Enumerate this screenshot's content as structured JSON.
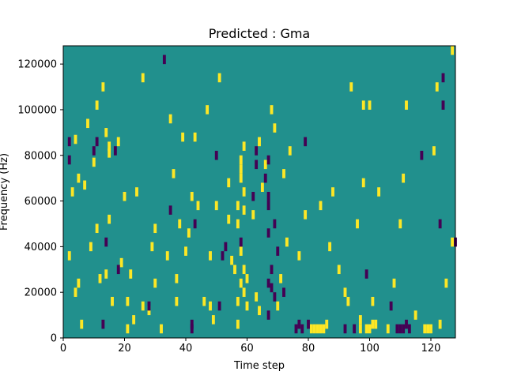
{
  "chart_data": {
    "type": "heatmap",
    "title": "Predicted : Gma",
    "xlabel": "Time step",
    "ylabel": "Frequency (Hz)",
    "xlim": [
      0,
      128
    ],
    "ylim": [
      0,
      128000
    ],
    "x_ticks": [
      0,
      20,
      40,
      60,
      80,
      100,
      120
    ],
    "y_ticks": [
      0,
      20000,
      40000,
      60000,
      80000,
      100000,
      120000
    ],
    "grid": false,
    "legend": "none",
    "colors": {
      "background": "#21908d",
      "high": "#fde725",
      "low": "#440154"
    },
    "cells_high": [
      {
        "x": 2,
        "y": 34000
      },
      {
        "x": 3,
        "y": 62000
      },
      {
        "x": 4,
        "y": 85000
      },
      {
        "x": 4,
        "y": 18000
      },
      {
        "x": 5,
        "y": 68000
      },
      {
        "x": 5,
        "y": 22000
      },
      {
        "x": 6,
        "y": 4000
      },
      {
        "x": 7,
        "y": 65000
      },
      {
        "x": 8,
        "y": 92000
      },
      {
        "x": 9,
        "y": 38000
      },
      {
        "x": 10,
        "y": 75000
      },
      {
        "x": 11,
        "y": 100000
      },
      {
        "x": 11,
        "y": 46000
      },
      {
        "x": 12,
        "y": 24000
      },
      {
        "x": 13,
        "y": 108000
      },
      {
        "x": 14,
        "y": 88000
      },
      {
        "x": 14,
        "y": 26000
      },
      {
        "x": 15,
        "y": 82000
      },
      {
        "x": 15,
        "y": 79000
      },
      {
        "x": 15,
        "y": 50000
      },
      {
        "x": 16,
        "y": 14000
      },
      {
        "x": 18,
        "y": 84000
      },
      {
        "x": 19,
        "y": 31000
      },
      {
        "x": 20,
        "y": 60000
      },
      {
        "x": 21,
        "y": 2000
      },
      {
        "x": 21,
        "y": 14000
      },
      {
        "x": 22,
        "y": 26000
      },
      {
        "x": 23,
        "y": 6000
      },
      {
        "x": 24,
        "y": 62000
      },
      {
        "x": 26,
        "y": 12000
      },
      {
        "x": 26,
        "y": 112000
      },
      {
        "x": 28,
        "y": 10000
      },
      {
        "x": 29,
        "y": 38000
      },
      {
        "x": 30,
        "y": 22000
      },
      {
        "x": 30,
        "y": 46000
      },
      {
        "x": 32,
        "y": 2000
      },
      {
        "x": 34,
        "y": 34000
      },
      {
        "x": 35,
        "y": 94000
      },
      {
        "x": 36,
        "y": 70000
      },
      {
        "x": 37,
        "y": 24000
      },
      {
        "x": 37,
        "y": 14000
      },
      {
        "x": 38,
        "y": 48000
      },
      {
        "x": 39,
        "y": 86000
      },
      {
        "x": 40,
        "y": 36000
      },
      {
        "x": 41,
        "y": 44000
      },
      {
        "x": 42,
        "y": 60000
      },
      {
        "x": 43,
        "y": 86000
      },
      {
        "x": 44,
        "y": 56000
      },
      {
        "x": 46,
        "y": 14000
      },
      {
        "x": 47,
        "y": 98000
      },
      {
        "x": 48,
        "y": 12000
      },
      {
        "x": 48,
        "y": 34000
      },
      {
        "x": 49,
        "y": 6000
      },
      {
        "x": 50,
        "y": 56000
      },
      {
        "x": 51,
        "y": 112000
      },
      {
        "x": 54,
        "y": 50000
      },
      {
        "x": 54,
        "y": 66000
      },
      {
        "x": 55,
        "y": 32000
      },
      {
        "x": 56,
        "y": 28000
      },
      {
        "x": 57,
        "y": 56000
      },
      {
        "x": 57,
        "y": 48000
      },
      {
        "x": 57,
        "y": 14000
      },
      {
        "x": 57,
        "y": 4000
      },
      {
        "x": 58,
        "y": 76000
      },
      {
        "x": 58,
        "y": 72000
      },
      {
        "x": 58,
        "y": 68000
      },
      {
        "x": 58,
        "y": 36000
      },
      {
        "x": 58,
        "y": 22000
      },
      {
        "x": 59,
        "y": 82000
      },
      {
        "x": 59,
        "y": 62000
      },
      {
        "x": 59,
        "y": 54000
      },
      {
        "x": 59,
        "y": 28000
      },
      {
        "x": 59,
        "y": 18000
      },
      {
        "x": 60,
        "y": 24000
      },
      {
        "x": 60,
        "y": 12000
      },
      {
        "x": 62,
        "y": 52000
      },
      {
        "x": 63,
        "y": 16000
      },
      {
        "x": 64,
        "y": 84000
      },
      {
        "x": 64,
        "y": 10000
      },
      {
        "x": 65,
        "y": 64000
      },
      {
        "x": 66,
        "y": 74000
      },
      {
        "x": 68,
        "y": 98000
      },
      {
        "x": 69,
        "y": 90000
      },
      {
        "x": 70,
        "y": 12000
      },
      {
        "x": 71,
        "y": 24000
      },
      {
        "x": 72,
        "y": 70000
      },
      {
        "x": 73,
        "y": 40000
      },
      {
        "x": 74,
        "y": 80000
      },
      {
        "x": 77,
        "y": 34000
      },
      {
        "x": 79,
        "y": 52000
      },
      {
        "x": 81,
        "y": 2000
      },
      {
        "x": 82,
        "y": 2000
      },
      {
        "x": 83,
        "y": 2000
      },
      {
        "x": 84,
        "y": 2000
      },
      {
        "x": 84,
        "y": 56000
      },
      {
        "x": 85,
        "y": 2000
      },
      {
        "x": 86,
        "y": 4000
      },
      {
        "x": 87,
        "y": 38000
      },
      {
        "x": 88,
        "y": 62000
      },
      {
        "x": 90,
        "y": 28000
      },
      {
        "x": 92,
        "y": 18000
      },
      {
        "x": 93,
        "y": 14000
      },
      {
        "x": 94,
        "y": 108000
      },
      {
        "x": 96,
        "y": 48000
      },
      {
        "x": 97,
        "y": 2000
      },
      {
        "x": 97,
        "y": 6000
      },
      {
        "x": 98,
        "y": 100000
      },
      {
        "x": 98,
        "y": 66000
      },
      {
        "x": 99,
        "y": 2000
      },
      {
        "x": 100,
        "y": 2000
      },
      {
        "x": 100,
        "y": 100000
      },
      {
        "x": 101,
        "y": 14000
      },
      {
        "x": 101,
        "y": 4000
      },
      {
        "x": 102,
        "y": 4000
      },
      {
        "x": 103,
        "y": 62000
      },
      {
        "x": 106,
        "y": 2000
      },
      {
        "x": 108,
        "y": 22000
      },
      {
        "x": 110,
        "y": 48000
      },
      {
        "x": 111,
        "y": 68000
      },
      {
        "x": 112,
        "y": 100000
      },
      {
        "x": 115,
        "y": 8000
      },
      {
        "x": 118,
        "y": 2000
      },
      {
        "x": 119,
        "y": 2000
      },
      {
        "x": 120,
        "y": 2000
      },
      {
        "x": 121,
        "y": 80000
      },
      {
        "x": 122,
        "y": 108000
      },
      {
        "x": 123,
        "y": 4000
      },
      {
        "x": 125,
        "y": 22000
      },
      {
        "x": 127,
        "y": 124000
      },
      {
        "x": 127,
        "y": 40000
      }
    ],
    "cells_low": [
      {
        "x": 2,
        "y": 84000
      },
      {
        "x": 2,
        "y": 76000
      },
      {
        "x": 10,
        "y": 80000
      },
      {
        "x": 11,
        "y": 84000
      },
      {
        "x": 13,
        "y": 4000
      },
      {
        "x": 14,
        "y": 40000
      },
      {
        "x": 17,
        "y": 80000
      },
      {
        "x": 18,
        "y": 28000
      },
      {
        "x": 28,
        "y": 12000
      },
      {
        "x": 33,
        "y": 120000
      },
      {
        "x": 35,
        "y": 54000
      },
      {
        "x": 42,
        "y": 4000
      },
      {
        "x": 42,
        "y": 2000
      },
      {
        "x": 43,
        "y": 48000
      },
      {
        "x": 50,
        "y": 78000
      },
      {
        "x": 51,
        "y": 12000
      },
      {
        "x": 52,
        "y": 34000
      },
      {
        "x": 53,
        "y": 38000
      },
      {
        "x": 58,
        "y": 40000
      },
      {
        "x": 62,
        "y": 60000
      },
      {
        "x": 63,
        "y": 80000
      },
      {
        "x": 63,
        "y": 74000
      },
      {
        "x": 66,
        "y": 68000
      },
      {
        "x": 67,
        "y": 76000
      },
      {
        "x": 67,
        "y": 60000
      },
      {
        "x": 67,
        "y": 56000
      },
      {
        "x": 67,
        "y": 44000
      },
      {
        "x": 67,
        "y": 22000
      },
      {
        "x": 67,
        "y": 8000
      },
      {
        "x": 68,
        "y": 20000
      },
      {
        "x": 68,
        "y": 28000
      },
      {
        "x": 69,
        "y": 16000
      },
      {
        "x": 69,
        "y": 48000
      },
      {
        "x": 70,
        "y": 36000
      },
      {
        "x": 72,
        "y": 18000
      },
      {
        "x": 76,
        "y": 2000
      },
      {
        "x": 77,
        "y": 4000
      },
      {
        "x": 78,
        "y": 2000
      },
      {
        "x": 79,
        "y": 84000
      },
      {
        "x": 80,
        "y": 4000
      },
      {
        "x": 92,
        "y": 2000
      },
      {
        "x": 95,
        "y": 2000
      },
      {
        "x": 99,
        "y": 26000
      },
      {
        "x": 107,
        "y": 12000
      },
      {
        "x": 109,
        "y": 2000
      },
      {
        "x": 110,
        "y": 2000
      },
      {
        "x": 111,
        "y": 2000
      },
      {
        "x": 112,
        "y": 4000
      },
      {
        "x": 113,
        "y": 2000
      },
      {
        "x": 117,
        "y": 78000
      },
      {
        "x": 123,
        "y": 48000
      },
      {
        "x": 124,
        "y": 100000
      },
      {
        "x": 124,
        "y": 112000
      },
      {
        "x": 128,
        "y": 40000
      }
    ]
  }
}
